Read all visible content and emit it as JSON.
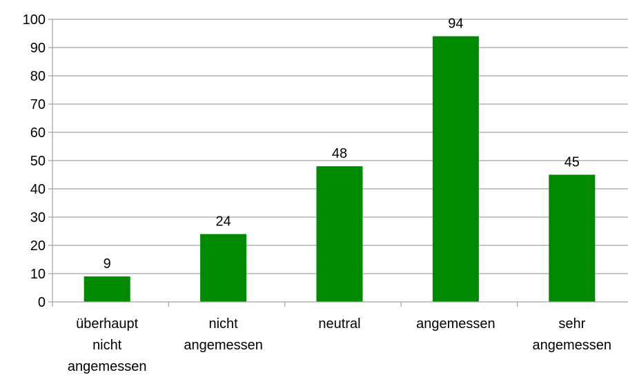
{
  "chart_data": {
    "type": "bar",
    "categories": [
      [
        "überhaupt",
        "nicht",
        "angemessen"
      ],
      [
        "nicht",
        "angemessen"
      ],
      [
        "neutral"
      ],
      [
        "angemessen"
      ],
      [
        "sehr",
        "angemessen"
      ]
    ],
    "values": [
      9,
      24,
      48,
      94,
      45
    ],
    "data_labels": [
      "9",
      "24",
      "48",
      "94",
      "45"
    ],
    "title": "",
    "xlabel": "",
    "ylabel": "",
    "ylim": [
      0,
      100
    ],
    "yticks": [
      0,
      10,
      20,
      30,
      40,
      50,
      60,
      70,
      80,
      90,
      100
    ],
    "ytick_labels": [
      "0",
      "10",
      "20",
      "30",
      "40",
      "50",
      "60",
      "70",
      "80",
      "90",
      "100"
    ],
    "grid": true,
    "legend": "none",
    "bar_color": "#008a00",
    "gridline_color": "#a0a0a0"
  }
}
